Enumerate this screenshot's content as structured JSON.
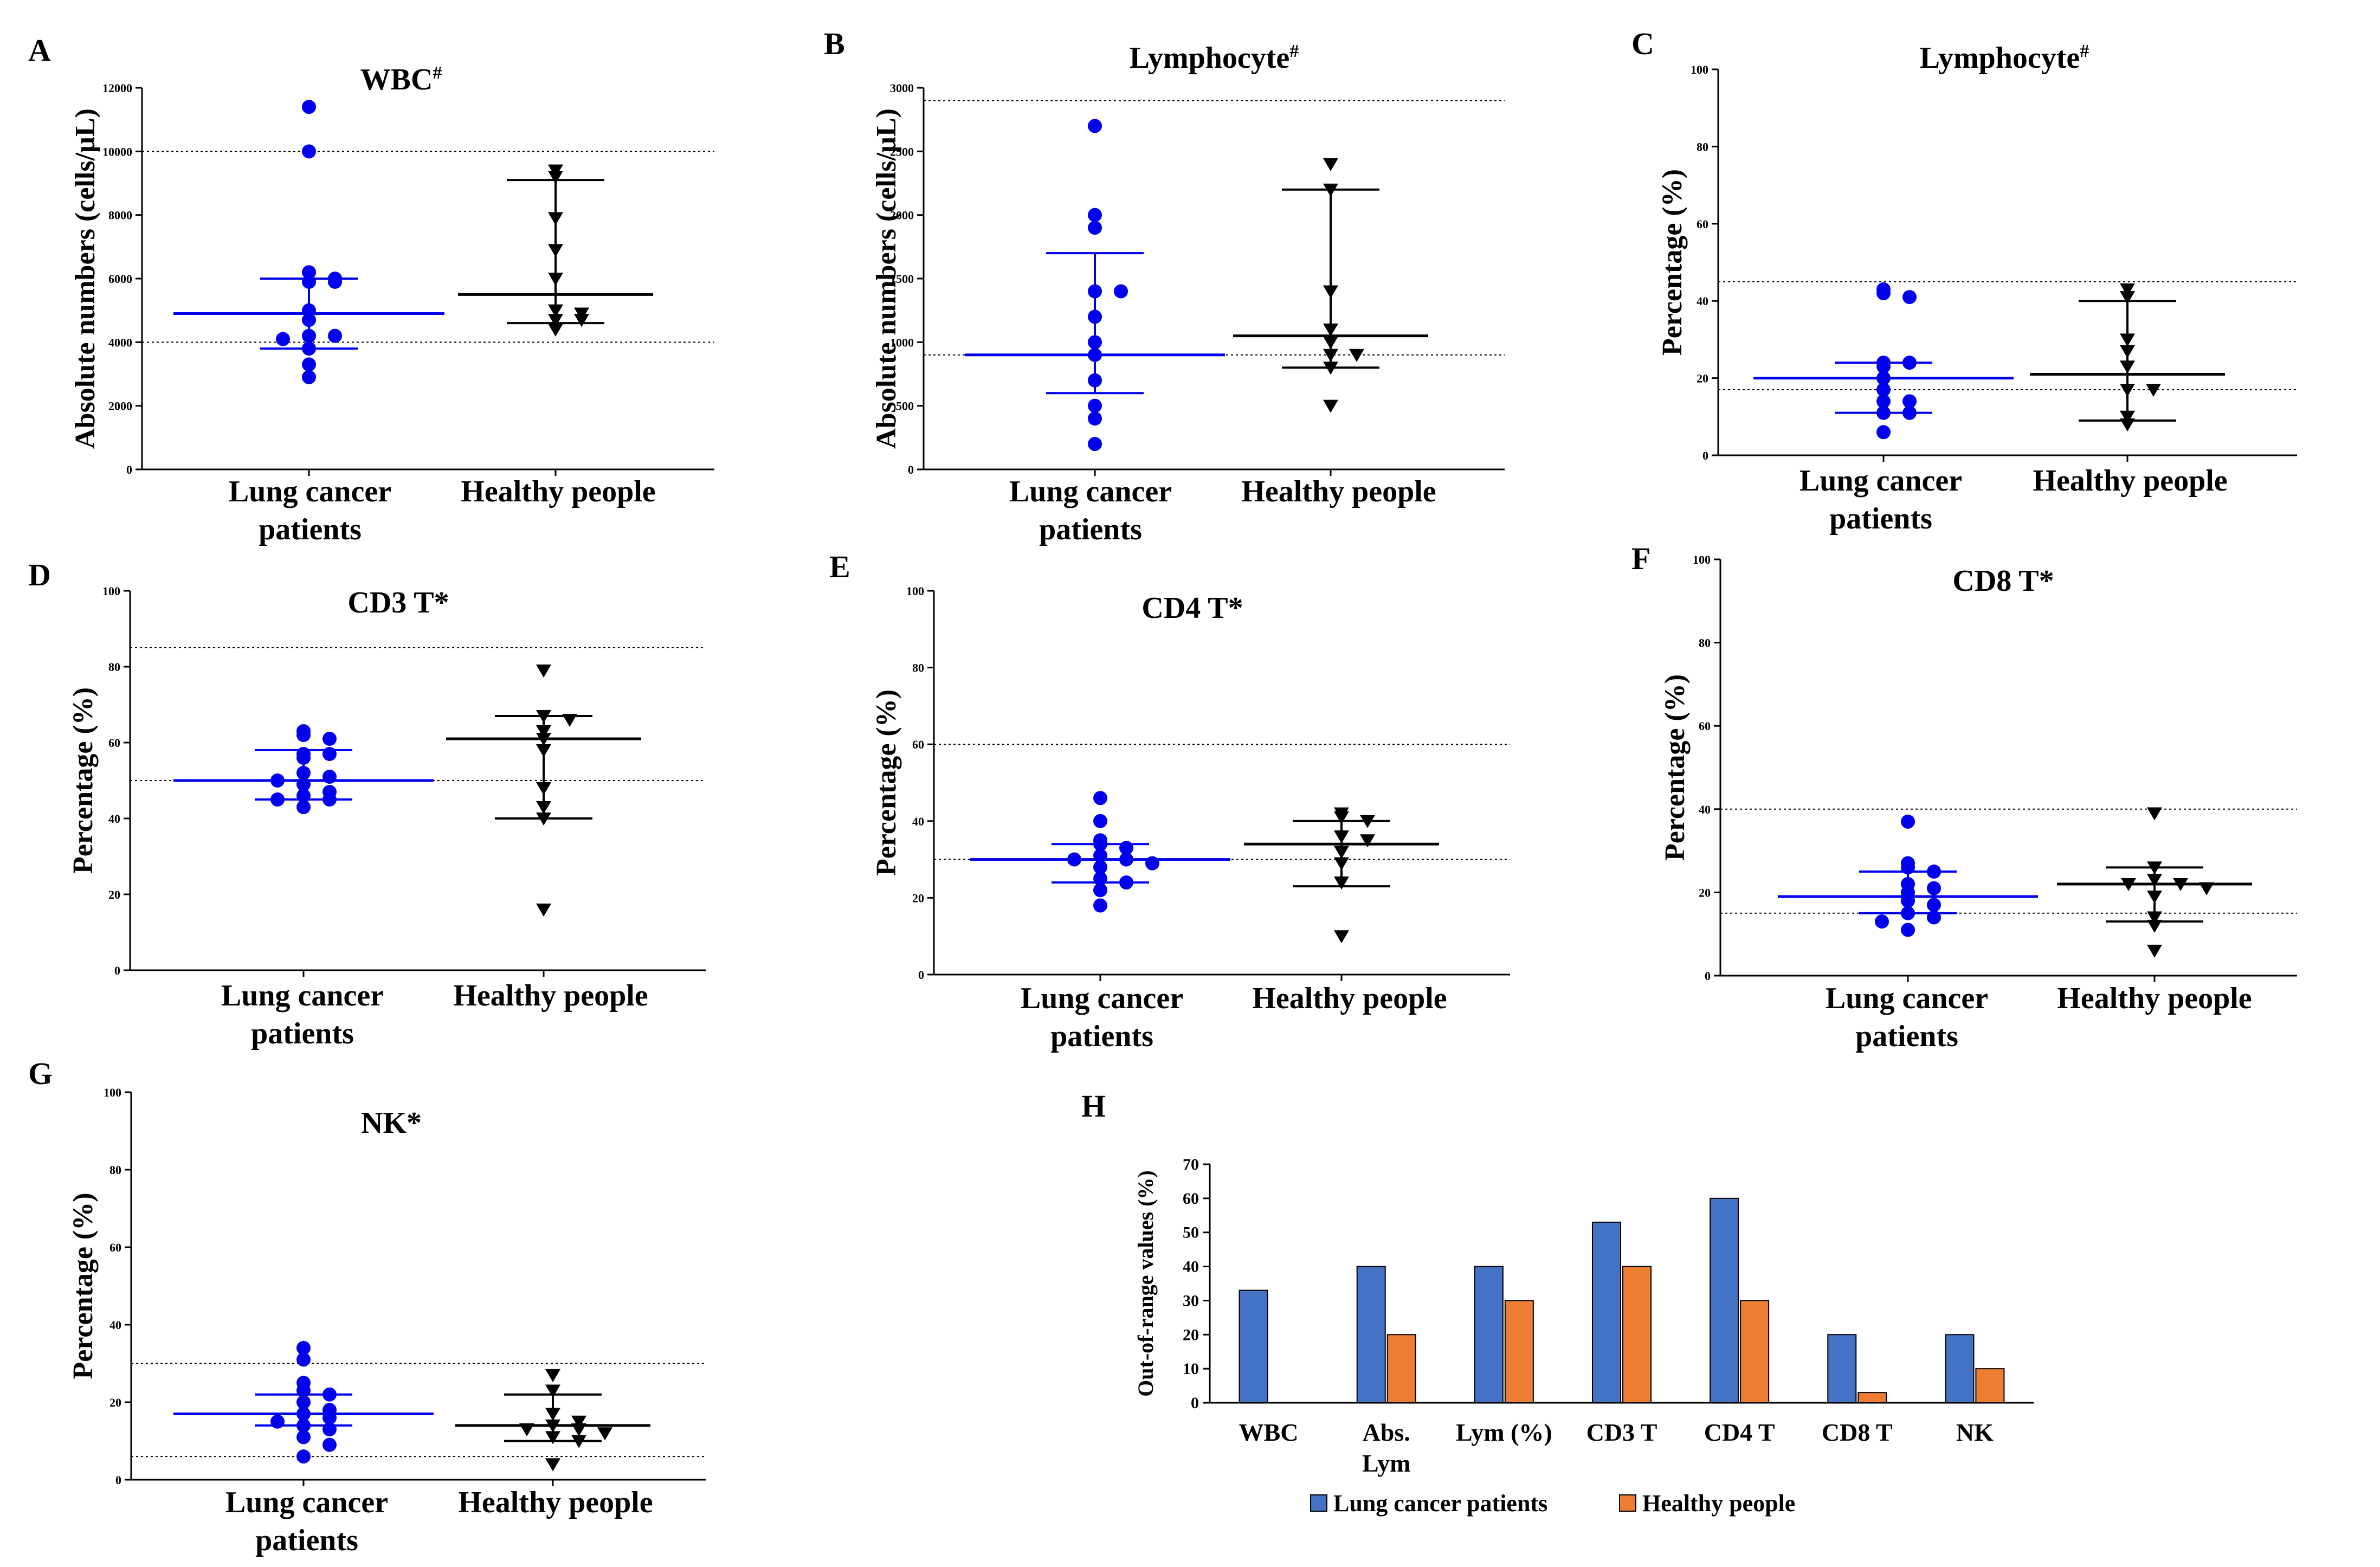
{
  "colors": {
    "patients": "#0000ee",
    "healthy": "#000000",
    "bar_patients": "#4472c4",
    "bar_healthy": "#ed7d31"
  },
  "chart_data": [
    {
      "label": "A",
      "title": "WBC",
      "title_sup": "#",
      "type": "scatter",
      "ylabel": "Absolute numbers (cells/µL)",
      "ylim": [
        0,
        12000
      ],
      "yticks": [
        0,
        2000,
        4000,
        6000,
        8000,
        10000,
        12000
      ],
      "ref_lines": [
        4000,
        10000
      ],
      "categories": [
        "Lung cancer|patients",
        "Healthy people"
      ],
      "series": [
        {
          "name": "Lung cancer patients",
          "marker": "circle",
          "values": [
            11400,
            10000,
            6200,
            6000,
            5900,
            5900,
            5000,
            4700,
            4200,
            4200,
            4100,
            3800,
            3300,
            2900
          ],
          "median": 4900,
          "q1": 3800,
          "q3": 6000
        },
        {
          "name": "Healthy people",
          "marker": "triangle",
          "values": [
            9400,
            9200,
            7900,
            6900,
            6000,
            5000,
            4900,
            4700,
            4700,
            4400
          ],
          "median": 5500,
          "q1": 4600,
          "q3": 9100
        }
      ]
    },
    {
      "label": "B",
      "title": "Lymphocyte",
      "title_sup": "#",
      "type": "scatter",
      "ylabel": "Absolute numbers (cells/µL)",
      "ylim": [
        0,
        3000
      ],
      "yticks": [
        0,
        500,
        1000,
        1500,
        2000,
        2500,
        3000
      ],
      "ref_lines": [
        900,
        2900
      ],
      "categories": [
        "Lung cancer|patients",
        "Healthy people"
      ],
      "series": [
        {
          "name": "Lung cancer patients",
          "marker": "circle",
          "values": [
            2700,
            2000,
            1900,
            1400,
            1400,
            1200,
            1000,
            900,
            700,
            500,
            400,
            200
          ],
          "median": 900,
          "q1": 600,
          "q3": 1700
        },
        {
          "name": "Healthy people",
          "marker": "triangle",
          "values": [
            2400,
            2200,
            1400,
            1100,
            1000,
            900,
            900,
            800,
            500
          ],
          "median": 1050,
          "q1": 800,
          "q3": 2200
        }
      ]
    },
    {
      "label": "C",
      "title": "Lymphocyte",
      "title_sup": "#",
      "type": "scatter",
      "ylabel": "Percentage (%)",
      "ylim": [
        0,
        100
      ],
      "yticks": [
        0,
        20,
        40,
        60,
        80,
        100
      ],
      "ref_lines": [
        17,
        45
      ],
      "categories": [
        "Lung cancer|patients",
        "Healthy people"
      ],
      "series": [
        {
          "name": "Lung cancer patients",
          "marker": "circle",
          "values": [
            43,
            42,
            41,
            24,
            24,
            23,
            20,
            17,
            14,
            14,
            11,
            11,
            6
          ],
          "median": 20,
          "q1": 11,
          "q3": 24
        },
        {
          "name": "Healthy people",
          "marker": "triangle",
          "values": [
            43,
            41,
            30,
            27,
            23,
            17,
            17,
            10,
            8
          ],
          "median": 21,
          "q1": 9,
          "q3": 40
        }
      ]
    },
    {
      "label": "D",
      "title": "CD3 T*",
      "title_sup": "",
      "type": "scatter",
      "ylabel": "Percentage (%)",
      "ylim": [
        0,
        100
      ],
      "yticks": [
        0,
        20,
        40,
        60,
        80,
        100
      ],
      "ref_lines": [
        50,
        85
      ],
      "categories": [
        "Lung cancer|patients",
        "Healthy people"
      ],
      "series": [
        {
          "name": "Lung cancer patients",
          "marker": "circle",
          "values": [
            63,
            62,
            61,
            57,
            57,
            56,
            52,
            51,
            50,
            49,
            47,
            46,
            45,
            45,
            43
          ],
          "median": 50,
          "q1": 45,
          "q3": 58
        },
        {
          "name": "Healthy people",
          "marker": "triangle",
          "values": [
            79,
            67,
            66,
            63,
            61,
            58,
            48,
            43,
            40,
            16
          ],
          "median": 61,
          "q1": 40,
          "q3": 67
        }
      ]
    },
    {
      "label": "E",
      "title": "CD4 T*",
      "title_sup": "",
      "type": "scatter",
      "ylabel": "Percentage (%)",
      "ylim": [
        0,
        100
      ],
      "yticks": [
        0,
        20,
        40,
        60,
        80,
        100
      ],
      "ref_lines": [
        30,
        60
      ],
      "categories": [
        "Lung cancer|patients",
        "Healthy people"
      ],
      "series": [
        {
          "name": "Lung cancer patients",
          "marker": "circle",
          "values": [
            46,
            40,
            35,
            34,
            33,
            31,
            30,
            30,
            29,
            28,
            25,
            24,
            22,
            18
          ],
          "median": 30,
          "q1": 24,
          "q3": 34
        },
        {
          "name": "Healthy people",
          "marker": "triangle",
          "values": [
            42,
            41,
            40,
            36,
            35,
            32,
            29,
            24,
            10
          ],
          "median": 34,
          "q1": 23,
          "q3": 40
        }
      ]
    },
    {
      "label": "F",
      "title": "CD8 T*",
      "title_sup": "",
      "type": "scatter",
      "ylabel": "Percentage (%)",
      "ylim": [
        0,
        100
      ],
      "yticks": [
        0,
        20,
        40,
        60,
        80,
        100
      ],
      "ref_lines": [
        15,
        40
      ],
      "categories": [
        "Lung cancer|patients",
        "Healthy people"
      ],
      "series": [
        {
          "name": "Lung cancer patients",
          "marker": "circle",
          "values": [
            37,
            27,
            26,
            25,
            22,
            21,
            20,
            18,
            17,
            15,
            14,
            13,
            11
          ],
          "median": 19,
          "q1": 15,
          "q3": 25
        },
        {
          "name": "Healthy people",
          "marker": "triangle",
          "values": [
            39,
            26,
            23,
            22,
            22,
            21,
            19,
            14,
            12,
            6
          ],
          "median": 22,
          "q1": 13,
          "q3": 26
        }
      ]
    },
    {
      "label": "G",
      "title": "NK*",
      "title_sup": "",
      "type": "scatter",
      "ylabel": "Percentage (%)",
      "ylim": [
        0,
        100
      ],
      "yticks": [
        0,
        20,
        40,
        60,
        80,
        100
      ],
      "ref_lines": [
        6,
        30
      ],
      "categories": [
        "Lung cancer|patients",
        "Healthy people"
      ],
      "series": [
        {
          "name": "Lung cancer patients",
          "marker": "circle",
          "values": [
            34,
            31,
            25,
            23,
            22,
            20,
            18,
            17,
            16,
            15,
            14,
            13,
            11,
            9,
            6
          ],
          "median": 17,
          "q1": 14,
          "q3": 22
        },
        {
          "name": "Healthy people",
          "marker": "triangle",
          "values": [
            27,
            23,
            17,
            15,
            14,
            13,
            13,
            12,
            11,
            10,
            4
          ],
          "median": 14,
          "q1": 10,
          "q3": 22
        }
      ]
    },
    {
      "label": "H",
      "title": "",
      "type": "bar",
      "ylabel": "Out-of-range values (%)",
      "ylim": [
        0,
        70
      ],
      "yticks": [
        0,
        10,
        20,
        30,
        40,
        50,
        60,
        70
      ],
      "categories": [
        "WBC",
        "Abs.|Lym",
        "Lym (%)",
        "CD3 T",
        "CD4 T",
        "CD8 T",
        "NK"
      ],
      "series": [
        {
          "name": "Lung cancer patients",
          "values": [
            33,
            40,
            40,
            53,
            60,
            20,
            20
          ]
        },
        {
          "name": "Healthy people",
          "values": [
            0,
            20,
            30,
            40,
            30,
            3,
            10
          ]
        }
      ],
      "legend": "bottom-center"
    }
  ]
}
